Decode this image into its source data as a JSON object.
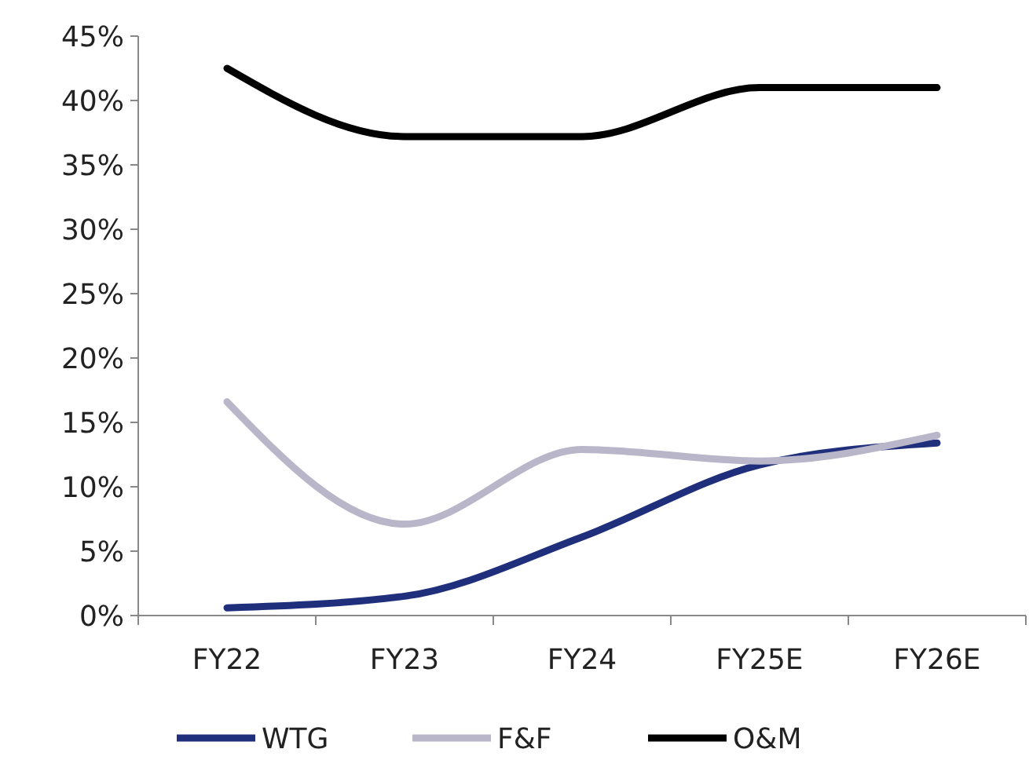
{
  "chart_data": {
    "type": "line",
    "categories": [
      "FY22",
      "FY23",
      "FY24",
      "FY25E",
      "FY26E"
    ],
    "series": [
      {
        "name": "WTG",
        "color": "#1f2f7c",
        "values": [
          0.6,
          1.5,
          6.1,
          11.7,
          13.4
        ]
      },
      {
        "name": "F&F",
        "color": "#b8b6c8",
        "values": [
          16.6,
          7.1,
          12.9,
          12,
          14
        ]
      },
      {
        "name": "O&M",
        "color": "#000000",
        "values": [
          42.5,
          37.2,
          37.2,
          41,
          41
        ]
      }
    ],
    "ylim": [
      0,
      45
    ],
    "yticks": [
      {
        "value": 0,
        "label": "0%"
      },
      {
        "value": 5,
        "label": "5%"
      },
      {
        "value": 10,
        "label": "10%"
      },
      {
        "value": 15,
        "label": "15%"
      },
      {
        "value": 20,
        "label": "20%"
      },
      {
        "value": 25,
        "label": "25%"
      },
      {
        "value": 30,
        "label": "30%"
      },
      {
        "value": 35,
        "label": "35%"
      },
      {
        "value": 40,
        "label": "40%"
      },
      {
        "value": 45,
        "label": "45%"
      }
    ],
    "grid": false,
    "legend": "bottom",
    "marker": "none",
    "line_style": "solid"
  }
}
